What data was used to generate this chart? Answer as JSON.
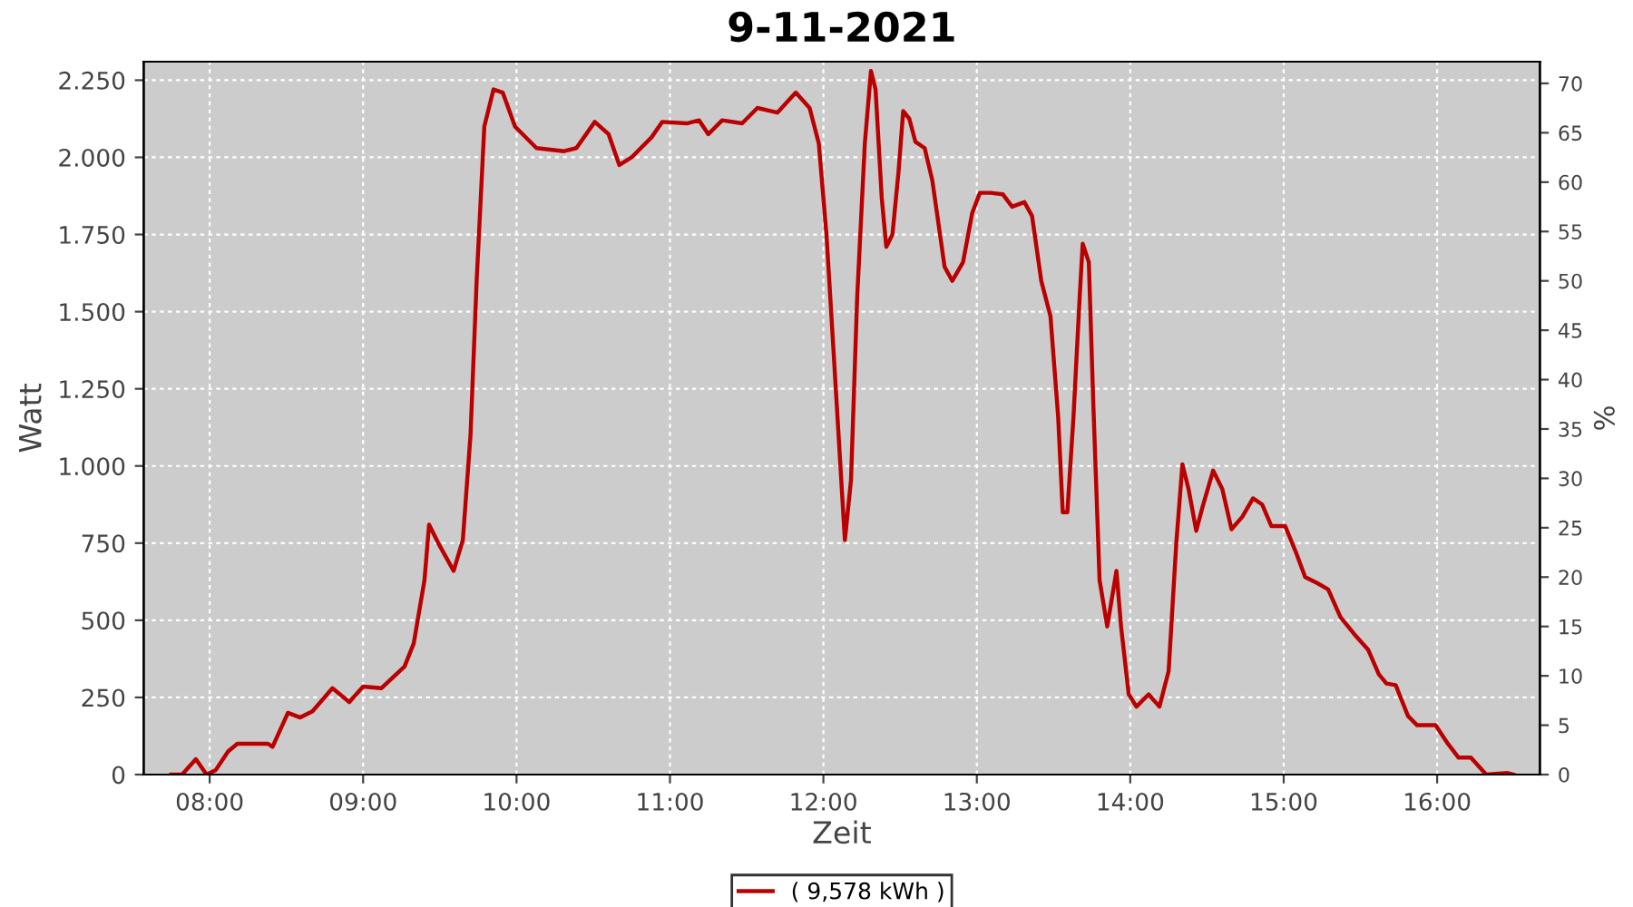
{
  "chart_data": {
    "type": "line",
    "title": "9-11-2021",
    "xlabel": "Zeit",
    "ylabel": "Watt",
    "y2label": "%",
    "xlim": [
      7.57,
      16.67
    ],
    "xticks": [
      {
        "value": 8,
        "label": "08:00"
      },
      {
        "value": 9,
        "label": "09:00"
      },
      {
        "value": 10,
        "label": "10:00"
      },
      {
        "value": 11,
        "label": "11:00"
      },
      {
        "value": 12,
        "label": "12:00"
      },
      {
        "value": 13,
        "label": "13:00"
      },
      {
        "value": 14,
        "label": "14:00"
      },
      {
        "value": 15,
        "label": "15:00"
      },
      {
        "value": 16,
        "label": "16:00"
      }
    ],
    "ylim": [
      0,
      2310
    ],
    "yticks": [
      {
        "value": 0,
        "label": "0"
      },
      {
        "value": 250,
        "label": "250"
      },
      {
        "value": 500,
        "label": "500"
      },
      {
        "value": 750,
        "label": "750"
      },
      {
        "value": 1000,
        "label": "1.000"
      },
      {
        "value": 1250,
        "label": "1.250"
      },
      {
        "value": 1500,
        "label": "1.500"
      },
      {
        "value": 1750,
        "label": "1.750"
      },
      {
        "value": 2000,
        "label": "2.000"
      },
      {
        "value": 2250,
        "label": "2.250"
      }
    ],
    "y2lim": [
      0,
      72.2
    ],
    "y2ticks": [
      0,
      5,
      10,
      15,
      20,
      25,
      30,
      35,
      40,
      45,
      50,
      55,
      60,
      65,
      70
    ],
    "grid": true,
    "legend": "bottom",
    "marker": "none",
    "line_style": "solid",
    "series": [
      {
        "name": "( 9,578 kWh )",
        "color": "#bb0000",
        "x": [
          7.75,
          7.82,
          7.91,
          7.98,
          8.04,
          8.12,
          8.18,
          8.38,
          8.41,
          8.51,
          8.59,
          8.67,
          8.8,
          8.91,
          9.0,
          9.12,
          9.27,
          9.33,
          9.4,
          9.43,
          9.49,
          9.59,
          9.65,
          9.7,
          9.74,
          9.79,
          9.85,
          9.91,
          9.99,
          10.13,
          10.31,
          10.39,
          10.51,
          10.6,
          10.67,
          10.75,
          10.88,
          10.95,
          11.11,
          11.19,
          11.25,
          11.34,
          11.47,
          11.57,
          11.7,
          11.82,
          11.91,
          11.97,
          12.02,
          12.07,
          12.12,
          12.14,
          12.18,
          12.22,
          12.27,
          12.31,
          12.34,
          12.38,
          12.41,
          12.45,
          12.49,
          12.52,
          12.56,
          12.6,
          12.66,
          12.71,
          12.76,
          12.79,
          12.84,
          12.91,
          12.97,
          13.02,
          13.09,
          13.17,
          13.23,
          13.31,
          13.36,
          13.42,
          13.48,
          13.53,
          13.56,
          13.59,
          13.63,
          13.67,
          13.69,
          13.73,
          13.76,
          13.8,
          13.85,
          13.91,
          13.94,
          13.99,
          14.04,
          14.12,
          14.19,
          14.25,
          14.3,
          14.34,
          14.38,
          14.43,
          14.47,
          14.54,
          14.6,
          14.66,
          14.73,
          14.8,
          14.86,
          14.92,
          15.01,
          15.08,
          15.14,
          15.22,
          15.29,
          15.37,
          15.46,
          15.55,
          15.62,
          15.67,
          15.73,
          15.81,
          15.87,
          15.99,
          16.07,
          16.14,
          16.22,
          16.32,
          16.46,
          16.5
        ],
        "values": [
          0,
          0,
          50,
          0,
          15,
          75,
          100,
          100,
          90,
          200,
          185,
          205,
          280,
          235,
          285,
          280,
          350,
          425,
          630,
          810,
          750,
          660,
          760,
          1100,
          1600,
          2100,
          2220,
          2210,
          2100,
          2030,
          2020,
          2030,
          2115,
          2075,
          1975,
          2000,
          2065,
          2115,
          2110,
          2120,
          2075,
          2120,
          2110,
          2160,
          2145,
          2210,
          2160,
          2045,
          1750,
          1340,
          925,
          760,
          955,
          1545,
          2045,
          2280,
          2220,
          1870,
          1710,
          1750,
          1955,
          2150,
          2125,
          2050,
          2030,
          1925,
          1750,
          1645,
          1600,
          1660,
          1820,
          1885,
          1885,
          1880,
          1840,
          1855,
          1810,
          1600,
          1485,
          1160,
          850,
          850,
          1160,
          1545,
          1720,
          1660,
          1190,
          630,
          480,
          660,
          480,
          260,
          220,
          260,
          220,
          335,
          750,
          1005,
          925,
          790,
          865,
          985,
          925,
          795,
          835,
          895,
          875,
          805,
          805,
          720,
          640,
          620,
          600,
          510,
          455,
          405,
          325,
          295,
          290,
          190,
          160,
          160,
          100,
          55,
          55,
          0,
          5,
          0
        ]
      }
    ]
  }
}
